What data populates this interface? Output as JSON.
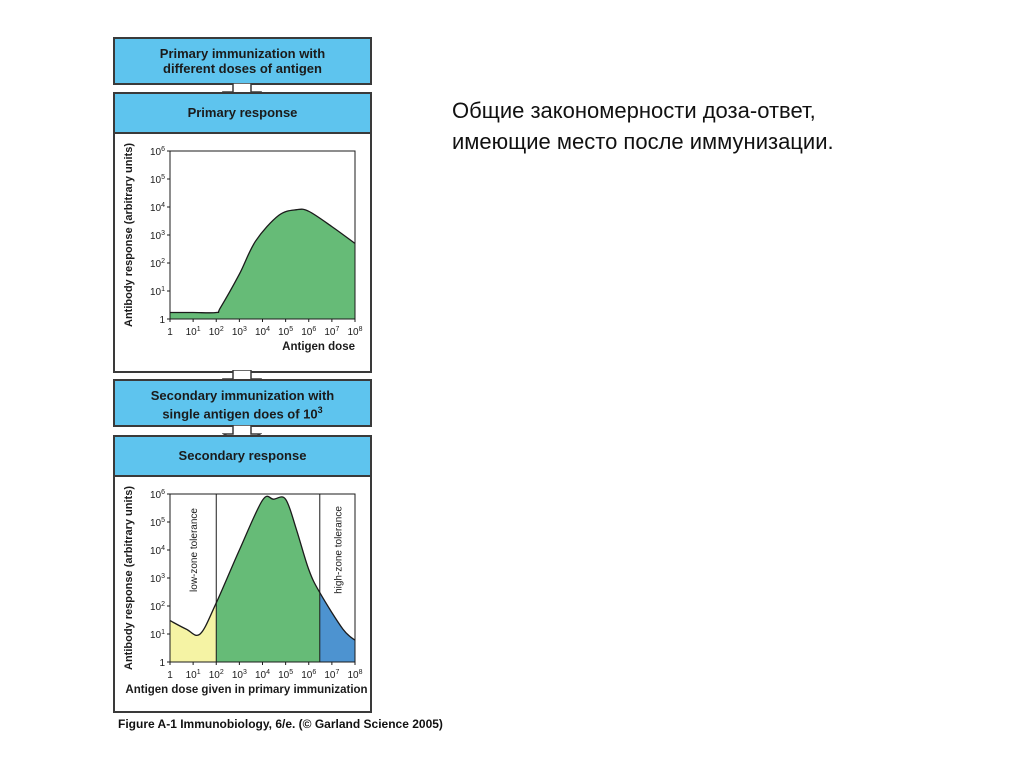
{
  "flow": {
    "box1": {
      "line1": "Primary immunization with",
      "line2": "different doses of antigen"
    },
    "panel1": {
      "title": "Primary response"
    },
    "box2": {
      "line1": "Secondary immunization with",
      "line2_prefix": "single antigen does of 10",
      "line2_sup": "3"
    },
    "panel2": {
      "title": "Secondary response"
    }
  },
  "heading": {
    "line1": "Общие закономерности доза-ответ,",
    "line2": "имеющие место после иммунизации."
  },
  "caption": "Figure A-1  Immunobiology, 6/e. (© Garland Science 2005)",
  "colors": {
    "blue_box": "#5ec4ee",
    "green_area": "#66bb77",
    "yellow_area": "#f5f3a4",
    "blue_area": "#4d93d0"
  },
  "chart_data": [
    {
      "type": "area",
      "title": "Primary response",
      "xlabel": "Antigen dose",
      "ylabel": "Antibody response (arbitrary units)",
      "x_scale": "log10",
      "y_scale": "log10",
      "xlim": [
        1,
        100000000
      ],
      "ylim": [
        1,
        1000000
      ],
      "x_ticks": [
        {
          "base": "1",
          "exp": ""
        },
        {
          "base": "10",
          "exp": "1"
        },
        {
          "base": "10",
          "exp": "2"
        },
        {
          "base": "10",
          "exp": "3"
        },
        {
          "base": "10",
          "exp": "4"
        },
        {
          "base": "10",
          "exp": "5"
        },
        {
          "base": "10",
          "exp": "6"
        },
        {
          "base": "10",
          "exp": "7"
        },
        {
          "base": "10",
          "exp": "8"
        }
      ],
      "y_ticks": [
        {
          "base": "1",
          "exp": ""
        },
        {
          "base": "10",
          "exp": "1"
        },
        {
          "base": "10",
          "exp": "2"
        },
        {
          "base": "10",
          "exp": "3"
        },
        {
          "base": "10",
          "exp": "4"
        },
        {
          "base": "10",
          "exp": "5"
        },
        {
          "base": "10",
          "exp": "6"
        }
      ],
      "series": [
        {
          "x": [
            1,
            10,
            100,
            150,
            1000,
            5000,
            50000,
            300000,
            1000000,
            10000000,
            100000000
          ],
          "y": [
            1.7,
            1.7,
            1.7,
            2.5,
            40,
            600,
            5000,
            8000,
            7000,
            2000,
            500
          ]
        }
      ]
    },
    {
      "type": "area",
      "title": "Secondary response",
      "xlabel": "Antigen dose given in primary immunization",
      "ylabel": "Antibody response (arbitrary units)",
      "x_scale": "log10",
      "y_scale": "log10",
      "xlim": [
        1,
        100000000
      ],
      "ylim": [
        1,
        1000000
      ],
      "x_ticks": [
        {
          "base": "1",
          "exp": ""
        },
        {
          "base": "10",
          "exp": "1"
        },
        {
          "base": "10",
          "exp": "2"
        },
        {
          "base": "10",
          "exp": "3"
        },
        {
          "base": "10",
          "exp": "4"
        },
        {
          "base": "10",
          "exp": "5"
        },
        {
          "base": "10",
          "exp": "6"
        },
        {
          "base": "10",
          "exp": "7"
        },
        {
          "base": "10",
          "exp": "8"
        }
      ],
      "y_ticks": [
        {
          "base": "1",
          "exp": ""
        },
        {
          "base": "10",
          "exp": "1"
        },
        {
          "base": "10",
          "exp": "2"
        },
        {
          "base": "10",
          "exp": "3"
        },
        {
          "base": "10",
          "exp": "4"
        },
        {
          "base": "10",
          "exp": "5"
        },
        {
          "base": "10",
          "exp": "6"
        }
      ],
      "regions": [
        {
          "label": "low-zone tolerance",
          "x_from": 1,
          "x_to": 100,
          "color": "#f5f3a4"
        },
        {
          "label": "",
          "x_from": 100,
          "x_to": 3000000,
          "color": "#66bb77"
        },
        {
          "label": "high-zone tolerance",
          "x_from": 3000000,
          "x_to": 100000000,
          "color": "#4d93d0"
        }
      ],
      "series": [
        {
          "x": [
            1,
            5,
            20,
            100,
            1000,
            10000,
            30000,
            100000,
            300000,
            1000000,
            3000000,
            30000000,
            100000000
          ],
          "y": [
            30,
            15,
            10,
            130,
            10000,
            600000,
            650000,
            650000,
            50000,
            2000,
            300,
            15,
            6
          ]
        }
      ]
    }
  ]
}
